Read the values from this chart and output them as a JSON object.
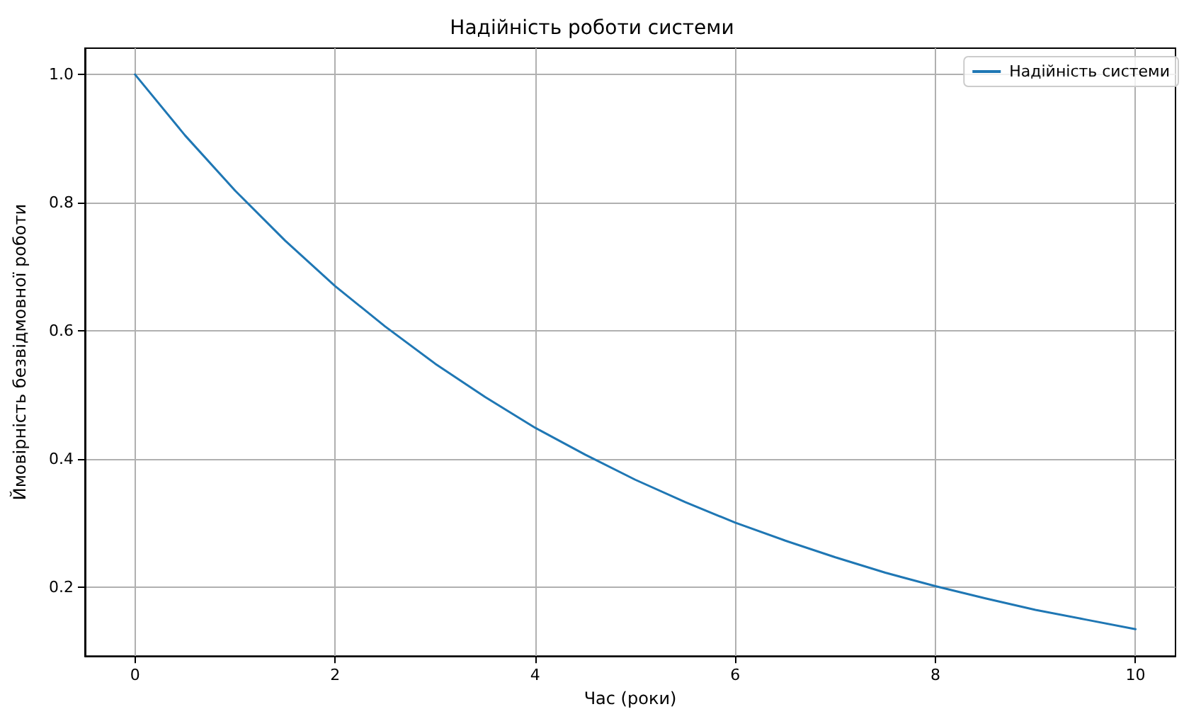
{
  "chart_data": {
    "type": "line",
    "title": "Надійність роботи системи",
    "xlabel": "Час (роки)",
    "ylabel": "Ймовірність безвідмовної роботи",
    "x": [
      0,
      0.5,
      1,
      1.5,
      2,
      2.5,
      3,
      3.5,
      4,
      4.5,
      5,
      5.5,
      6,
      6.5,
      7,
      7.5,
      8,
      8.5,
      9,
      9.5,
      10
    ],
    "series": [
      {
        "name": "Надійність системи",
        "color": "#1f77b4",
        "values": [
          1.0,
          0.905,
          0.819,
          0.741,
          0.67,
          0.607,
          0.549,
          0.497,
          0.449,
          0.407,
          0.368,
          0.333,
          0.301,
          0.273,
          0.247,
          0.223,
          0.202,
          0.183,
          0.165,
          0.15,
          0.135
        ]
      }
    ],
    "xlim": [
      -0.5,
      10.4
    ],
    "ylim": [
      0.093,
      1.041
    ],
    "xticks": [
      0,
      2,
      4,
      6,
      8,
      10
    ],
    "yticks": [
      {
        "value": 0.2,
        "label": "0.2"
      },
      {
        "value": 0.4,
        "label": "0.4"
      },
      {
        "value": 0.6,
        "label": "0.6"
      },
      {
        "value": 0.8,
        "label": "0.8"
      },
      {
        "value": 1,
        "label": "1.0"
      }
    ],
    "grid": true,
    "legend": "top right",
    "marker": "none",
    "line_style": "solid"
  }
}
